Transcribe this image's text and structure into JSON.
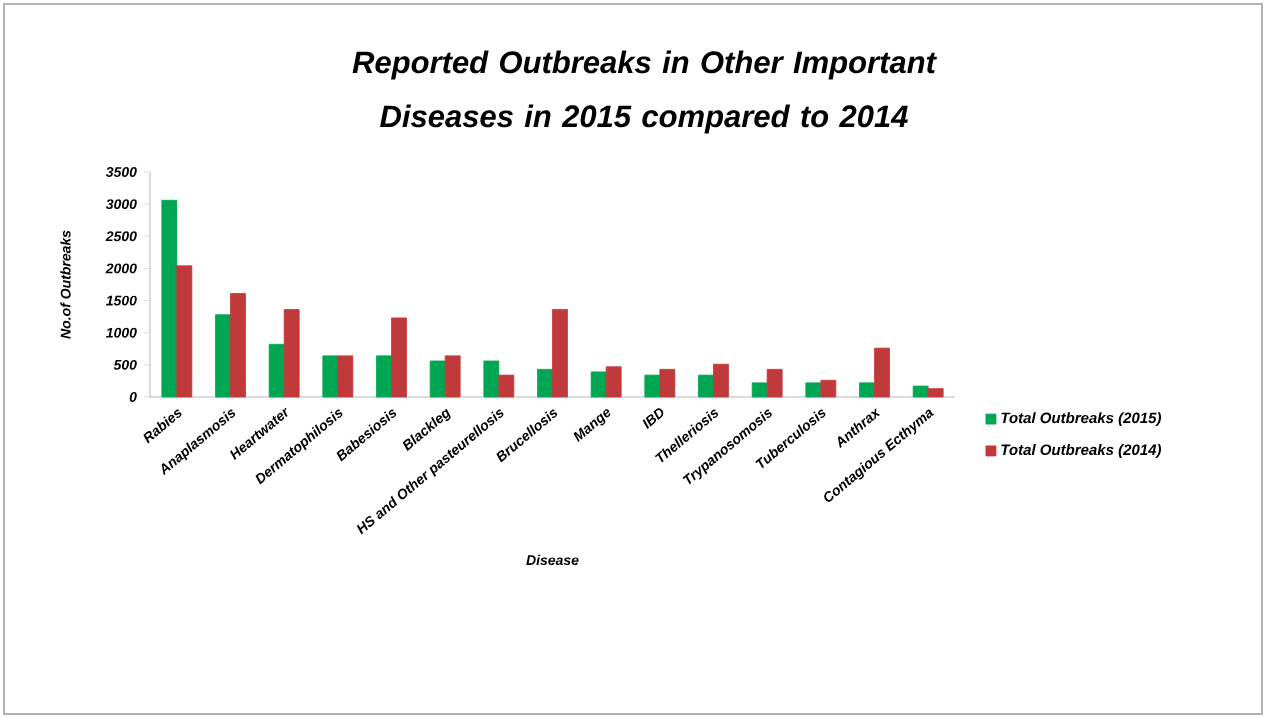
{
  "chart_data": {
    "type": "bar",
    "title": "Reported Outbreaks in Other Important Diseases in 2015 compared to 2014",
    "xlabel": "Disease",
    "ylabel": "No.of Outbreaks",
    "categories": [
      "Rabies",
      "Anaplasmosis",
      "Heartwater",
      "Dermatophilosis",
      "Babesiosis",
      "Blackleg",
      "HS and Other pasteurellosis",
      "Brucellosis",
      "Mange",
      "IBD",
      "Thelleriosis",
      "Trypanosomosis",
      "Tuberculosis",
      "Anthrax",
      "Contagious Ecthyma"
    ],
    "series": [
      {
        "name": "Total Outbreaks (2015)",
        "color": "#00a651",
        "values": [
          3060,
          1280,
          820,
          640,
          640,
          560,
          560,
          430,
          390,
          340,
          340,
          220,
          220,
          220,
          170
        ]
      },
      {
        "name": "Total Outbreaks (2014)",
        "color": "#c0393b",
        "values": [
          2040,
          1610,
          1360,
          640,
          1230,
          640,
          340,
          1360,
          470,
          430,
          510,
          430,
          260,
          760,
          130
        ]
      }
    ],
    "ylim": [
      0,
      3500
    ],
    "yticks": [
      0,
      500,
      1000,
      1500,
      2000,
      2500,
      3000,
      3500
    ],
    "legend": "right"
  }
}
